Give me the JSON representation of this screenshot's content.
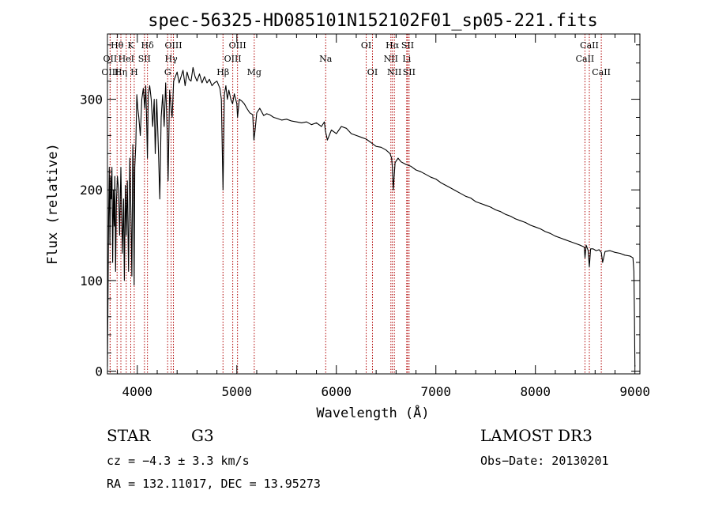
{
  "chart_data": {
    "type": "line",
    "title": "spec-56325-HD085101N152102F01_sp05-221.fits",
    "xlabel": "Wavelength (Å)",
    "ylabel": "Flux (relative)",
    "xlim": [
      3700,
      9050
    ],
    "ylim": [
      -3,
      372
    ],
    "xticks": [
      4000,
      5000,
      6000,
      7000,
      8000,
      9000
    ],
    "yticks": [
      0,
      100,
      200,
      300
    ],
    "xtick_labels": [
      "4000",
      "5000",
      "6000",
      "7000",
      "8000",
      "9000"
    ],
    "ytick_labels": [
      "0",
      "100",
      "200",
      "300"
    ],
    "series": [
      {
        "name": "spectrum",
        "x": [
          3700,
          3712,
          3718,
          3725,
          3732,
          3738,
          3745,
          3752,
          3760,
          3768,
          3775,
          3782,
          3790,
          3800,
          3812,
          3822,
          3835,
          3850,
          3862,
          3870,
          3880,
          3889,
          3900,
          3912,
          3925,
          3935,
          3945,
          3955,
          3962,
          3968,
          3975,
          3985,
          3995,
          4005,
          4015,
          4030,
          4045,
          4060,
          4075,
          4085,
          4095,
          4102,
          4110,
          4125,
          4140,
          4155,
          4170,
          4180,
          4195,
          4210,
          4226,
          4240,
          4255,
          4270,
          4285,
          4300,
          4310,
          4325,
          4340,
          4350,
          4365,
          4383,
          4400,
          4420,
          4440,
          4460,
          4480,
          4500,
          4520,
          4540,
          4560,
          4580,
          4600,
          4625,
          4650,
          4675,
          4700,
          4725,
          4750,
          4775,
          4800,
          4830,
          4845,
          4861,
          4875,
          4890,
          4905,
          4920,
          4940,
          4957,
          4975,
          5000,
          5007,
          5025,
          5050,
          5075,
          5100,
          5130,
          5160,
          5172,
          5183,
          5200,
          5230,
          5270,
          5300,
          5330,
          5370,
          5400,
          5450,
          5500,
          5550,
          5600,
          5650,
          5700,
          5750,
          5800,
          5850,
          5880,
          5890,
          5896,
          5910,
          5950,
          6000,
          6050,
          6100,
          6150,
          6200,
          6250,
          6300,
          6350,
          6400,
          6450,
          6500,
          6540,
          6555,
          6563,
          6572,
          6590,
          6620,
          6650,
          6700,
          6750,
          6800,
          6850,
          6900,
          6950,
          7000,
          7050,
          7100,
          7150,
          7200,
          7250,
          7300,
          7350,
          7400,
          7450,
          7500,
          7550,
          7600,
          7650,
          7700,
          7750,
          7800,
          7850,
          7900,
          7950,
          8000,
          8050,
          8100,
          8150,
          8200,
          8250,
          8300,
          8350,
          8400,
          8450,
          8490,
          8498,
          8510,
          8530,
          8542,
          8555,
          8580,
          8610,
          8640,
          8662,
          8675,
          8700,
          8750,
          8800,
          8850,
          8900,
          8950,
          8980,
          8990,
          8995,
          9000
        ],
        "y": [
          5,
          170,
          225,
          140,
          215,
          190,
          225,
          120,
          200,
          160,
          215,
          110,
          185,
          215,
          200,
          150,
          225,
          130,
          190,
          100,
          205,
          150,
          210,
          110,
          235,
          180,
          105,
          250,
          210,
          95,
          225,
          250,
          305,
          290,
          280,
          260,
          300,
          312,
          290,
          315,
          270,
          235,
          305,
          315,
          300,
          270,
          300,
          240,
          300,
          250,
          190,
          280,
          305,
          270,
          318,
          265,
          210,
          310,
          290,
          280,
          320,
          325,
          330,
          318,
          325,
          332,
          315,
          330,
          322,
          320,
          335,
          325,
          320,
          328,
          318,
          325,
          318,
          322,
          315,
          318,
          320,
          312,
          300,
          200,
          305,
          315,
          300,
          310,
          300,
          295,
          306,
          295,
          280,
          300,
          298,
          295,
          290,
          285,
          283,
          255,
          265,
          285,
          290,
          282,
          284,
          283,
          280,
          279,
          277,
          278,
          276,
          275,
          274,
          275,
          272,
          274,
          270,
          275,
          265,
          262,
          255,
          266,
          262,
          270,
          268,
          262,
          260,
          258,
          256,
          252,
          248,
          247,
          244,
          240,
          235,
          225,
          200,
          230,
          235,
          231,
          228,
          226,
          222,
          220,
          217,
          214,
          212,
          208,
          205,
          202,
          199,
          196,
          193,
          191,
          187,
          185,
          183,
          181,
          178,
          176,
          173,
          171,
          168,
          166,
          164,
          161,
          159,
          157,
          154,
          152,
          149,
          147,
          145,
          143,
          141,
          139,
          137,
          125,
          139,
          133,
          115,
          135,
          135,
          133,
          134,
          131,
          120,
          132,
          133,
          131,
          130,
          128,
          127,
          125,
          110,
          60,
          5
        ]
      }
    ],
    "spectral_lines": [
      {
        "label": "Hθ",
        "x": 3797,
        "row": 1
      },
      {
        "label": "OII",
        "x": 3727,
        "row": 2
      },
      {
        "label": "OIII",
        "x": 3727,
        "row": 3
      },
      {
        "label": "K",
        "x": 3934,
        "row": 1
      },
      {
        "label": "HeI",
        "x": 3889,
        "row": 2
      },
      {
        "label": "Hη",
        "x": 3835,
        "row": 3
      },
      {
        "label": "Hδ",
        "x": 4102,
        "row": 1
      },
      {
        "label": "SII",
        "x": 4072,
        "row": 2
      },
      {
        "label": "H",
        "x": 3969,
        "row": 3
      },
      {
        "label": "OIII",
        "x": 4363,
        "row": 1
      },
      {
        "label": "Hγ",
        "x": 4340,
        "row": 2
      },
      {
        "label": "G",
        "x": 4305,
        "row": 3
      },
      {
        "label": "OIII",
        "x": 5007,
        "row": 1
      },
      {
        "label": "OIII",
        "x": 4959,
        "row": 2
      },
      {
        "label": "Hβ",
        "x": 4861,
        "row": 3
      },
      {
        "label": "Mg",
        "x": 5175,
        "row": 3
      },
      {
        "label": "Na",
        "x": 5893,
        "row": 2
      },
      {
        "label": "OI",
        "x": 6300,
        "row": 1
      },
      {
        "label": "OI",
        "x": 6363,
        "row": 3
      },
      {
        "label": "Hα",
        "x": 6563,
        "row": 1
      },
      {
        "label": "SII",
        "x": 6716,
        "row": 1
      },
      {
        "label": "NII",
        "x": 6548,
        "row": 2
      },
      {
        "label": "Li",
        "x": 6707,
        "row": 2
      },
      {
        "label": "NII",
        "x": 6583,
        "row": 3
      },
      {
        "label": "SII",
        "x": 6731,
        "row": 3
      },
      {
        "label": "CaII",
        "x": 8542,
        "row": 1
      },
      {
        "label": "CaII",
        "x": 8498,
        "row": 2
      },
      {
        "label": "CaII",
        "x": 8662,
        "row": 3
      }
    ]
  },
  "info": {
    "object_type": "STAR",
    "subclass": "G3",
    "survey": "LAMOST DR3",
    "cz": "cz = −4.3 ± 3.3 km/s",
    "obs_date": "Obs−Date: 20130201",
    "coords": "RA = 132.11017, DEC =  13.95273"
  }
}
